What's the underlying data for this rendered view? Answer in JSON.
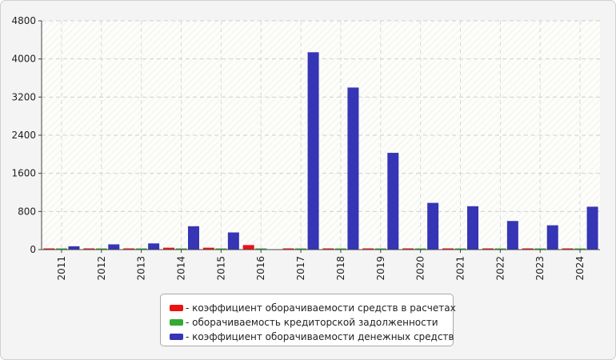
{
  "chart_data": {
    "type": "bar",
    "title": "",
    "xlabel": "",
    "ylabel": "",
    "categories": [
      "2011",
      "2012",
      "2013",
      "2014",
      "2015",
      "2016",
      "2017",
      "2018",
      "2019",
      "2020",
      "2021",
      "2022",
      "2023",
      "2024"
    ],
    "ylim": [
      0,
      4800
    ],
    "yticks": [
      0,
      800,
      1600,
      2400,
      3200,
      4000,
      4800
    ],
    "grid": true,
    "legend_position": "bottom",
    "series": [
      {
        "name": "коэффициент оборачиваемости средств в расчетах",
        "color": "#ee1111",
        "values": [
          5,
          10,
          10,
          40,
          40,
          95,
          5,
          10,
          5,
          5,
          10,
          10,
          10,
          10
        ]
      },
      {
        "name": "оборачиваемость кредиторской задолженности",
        "color": "#33aa33",
        "values": [
          25,
          5,
          5,
          10,
          10,
          5,
          5,
          5,
          5,
          5,
          5,
          5,
          5,
          5
        ]
      },
      {
        "name": "коэффициент оборачиваемости денежных средств",
        "color": "#3535b5",
        "values": [
          70,
          110,
          130,
          490,
          360,
          0,
          4140,
          3400,
          2030,
          980,
          910,
          600,
          510,
          900
        ]
      }
    ]
  },
  "legend": {
    "items": [
      {
        "label": "- коэффициент оборачиваемости средств в расчетах",
        "color": "#ee1111"
      },
      {
        "label": "- оборачиваемость кредиторской задолженности",
        "color": "#33aa33"
      },
      {
        "label": "- коэффициент оборачиваемости денежных средств",
        "color": "#3535b5"
      }
    ]
  }
}
